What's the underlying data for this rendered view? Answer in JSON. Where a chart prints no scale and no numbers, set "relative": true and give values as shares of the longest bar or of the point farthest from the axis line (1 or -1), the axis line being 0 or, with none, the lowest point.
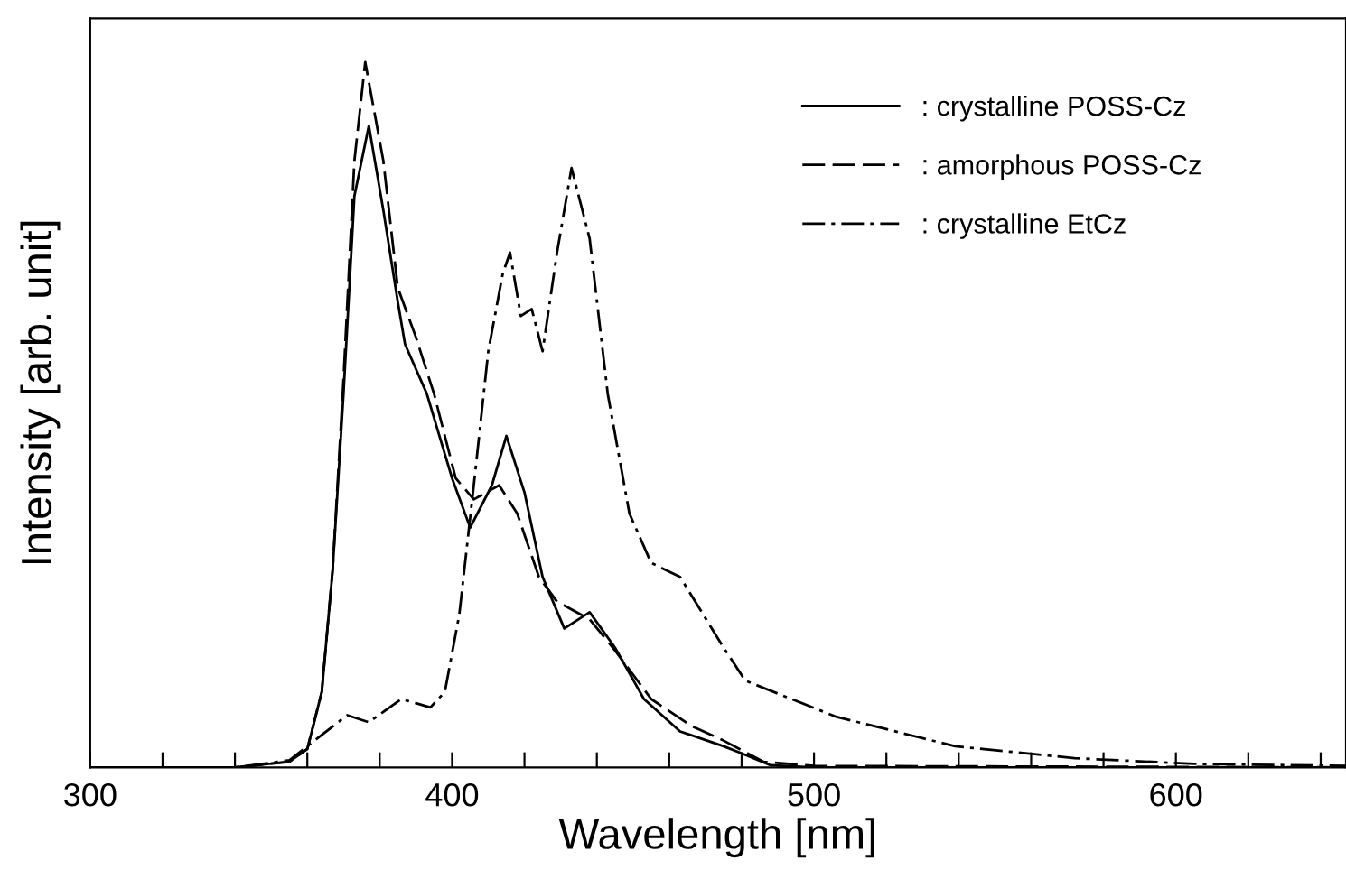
{
  "chart_data": {
    "type": "line",
    "relative": true,
    "xlabel": "Wavelength [nm]",
    "ylabel": "Intensity [arb. unit]",
    "xlim": [
      300,
      647
    ],
    "xticks": [
      300,
      {
        "value": 320,
        "label": null
      },
      {
        "value": 340,
        "label": null
      },
      {
        "value": 360,
        "label": null
      },
      {
        "value": 380,
        "label": null
      },
      400,
      {
        "value": 420,
        "label": null
      },
      {
        "value": 440,
        "label": null
      },
      {
        "value": 460,
        "label": null
      },
      {
        "value": 480,
        "label": null
      },
      500,
      {
        "value": 520,
        "label": null
      },
      {
        "value": 540,
        "label": null
      },
      {
        "value": 560,
        "label": null
      },
      {
        "value": 580,
        "label": null
      },
      600,
      {
        "value": 620,
        "label": null
      },
      {
        "value": 640,
        "label": null
      }
    ],
    "legend": "top right",
    "grid": false,
    "marker": "none",
    "series": [
      {
        "name": ": crystalline POSS-Cz",
        "color": "#000000",
        "line_style": "solid",
        "x": [
          300,
          340,
          355,
          360,
          364,
          367,
          370,
          373,
          377,
          381,
          385,
          387,
          393,
          400,
          405,
          411,
          415,
          420,
          425,
          431,
          438,
          445,
          453,
          463,
          475,
          480,
          488,
          500,
          647
        ],
        "values": [
          0,
          0,
          0.008,
          0.026,
          0.107,
          0.28,
          0.53,
          0.81,
          0.91,
          0.79,
          0.66,
          0.6,
          0.53,
          0.41,
          0.34,
          0.4,
          0.47,
          0.39,
          0.27,
          0.197,
          0.22,
          0.17,
          0.097,
          0.051,
          0.03,
          0.02,
          0.003,
          0,
          0
        ]
      },
      {
        "name": ": amorphous POSS-Cz",
        "color": "#000000",
        "line_style": "dashed",
        "x": [
          300,
          340,
          355,
          360,
          364,
          367,
          370,
          373,
          376,
          381,
          385,
          390,
          395,
          401,
          406,
          413,
          418,
          424,
          429,
          438,
          445,
          455,
          466,
          475,
          486,
          500,
          647
        ],
        "values": [
          0,
          0,
          0.008,
          0.026,
          0.107,
          0.28,
          0.55,
          0.86,
          1.0,
          0.86,
          0.68,
          0.61,
          0.53,
          0.41,
          0.38,
          0.4,
          0.36,
          0.27,
          0.235,
          0.21,
          0.166,
          0.097,
          0.059,
          0.038,
          0.008,
          0.002,
          0
        ]
      },
      {
        "name": ": crystalline EtCz",
        "color": "#000000",
        "line_style": "dashdot",
        "x": [
          300,
          340,
          355,
          371,
          377,
          386,
          394,
          398,
          402,
          406,
          410,
          414,
          416,
          419,
          422,
          425,
          429,
          433,
          438,
          443,
          449,
          455,
          463,
          475,
          481,
          506,
          539,
          572,
          605,
          647
        ],
        "values": [
          0,
          0,
          0.01,
          0.074,
          0.064,
          0.097,
          0.085,
          0.107,
          0.217,
          0.4,
          0.59,
          0.7,
          0.73,
          0.64,
          0.65,
          0.59,
          0.73,
          0.85,
          0.75,
          0.53,
          0.36,
          0.29,
          0.27,
          0.17,
          0.123,
          0.072,
          0.03,
          0.013,
          0.005,
          0.002
        ]
      }
    ]
  }
}
